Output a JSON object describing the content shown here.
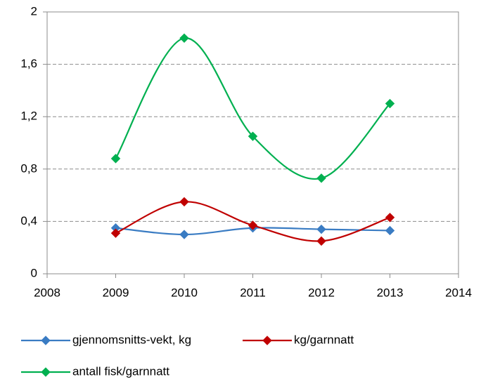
{
  "chart_data": {
    "type": "line",
    "x": [
      2009,
      2010,
      2011,
      2012,
      2013
    ],
    "xlim": [
      2008,
      2014
    ],
    "xticks": [
      2008,
      2009,
      2010,
      2011,
      2012,
      2013,
      2014
    ],
    "ylim": [
      0,
      2
    ],
    "yticks": [
      0,
      {
        "value": 0.4,
        "label": "0,4"
      },
      {
        "value": 0.8,
        "label": "0,8"
      },
      {
        "value": 1.2,
        "label": "1,2"
      },
      {
        "value": 1.6,
        "label": "1,6"
      },
      2
    ],
    "grid": true,
    "smooth": true,
    "legend": "bottom",
    "series": [
      {
        "name": "gjennomsnitts-vekt, kg",
        "color": "#3a7cc3",
        "values": [
          0.35,
          0.3,
          0.35,
          0.34,
          0.33
        ]
      },
      {
        "name": "kg/garnnatt",
        "color": "#c00000",
        "values": [
          0.31,
          0.55,
          0.37,
          0.25,
          0.43
        ]
      },
      {
        "name": "antall fisk/garnnatt",
        "color": "#00b050",
        "values": [
          0.88,
          1.8,
          1.05,
          0.73,
          1.3
        ]
      }
    ]
  }
}
